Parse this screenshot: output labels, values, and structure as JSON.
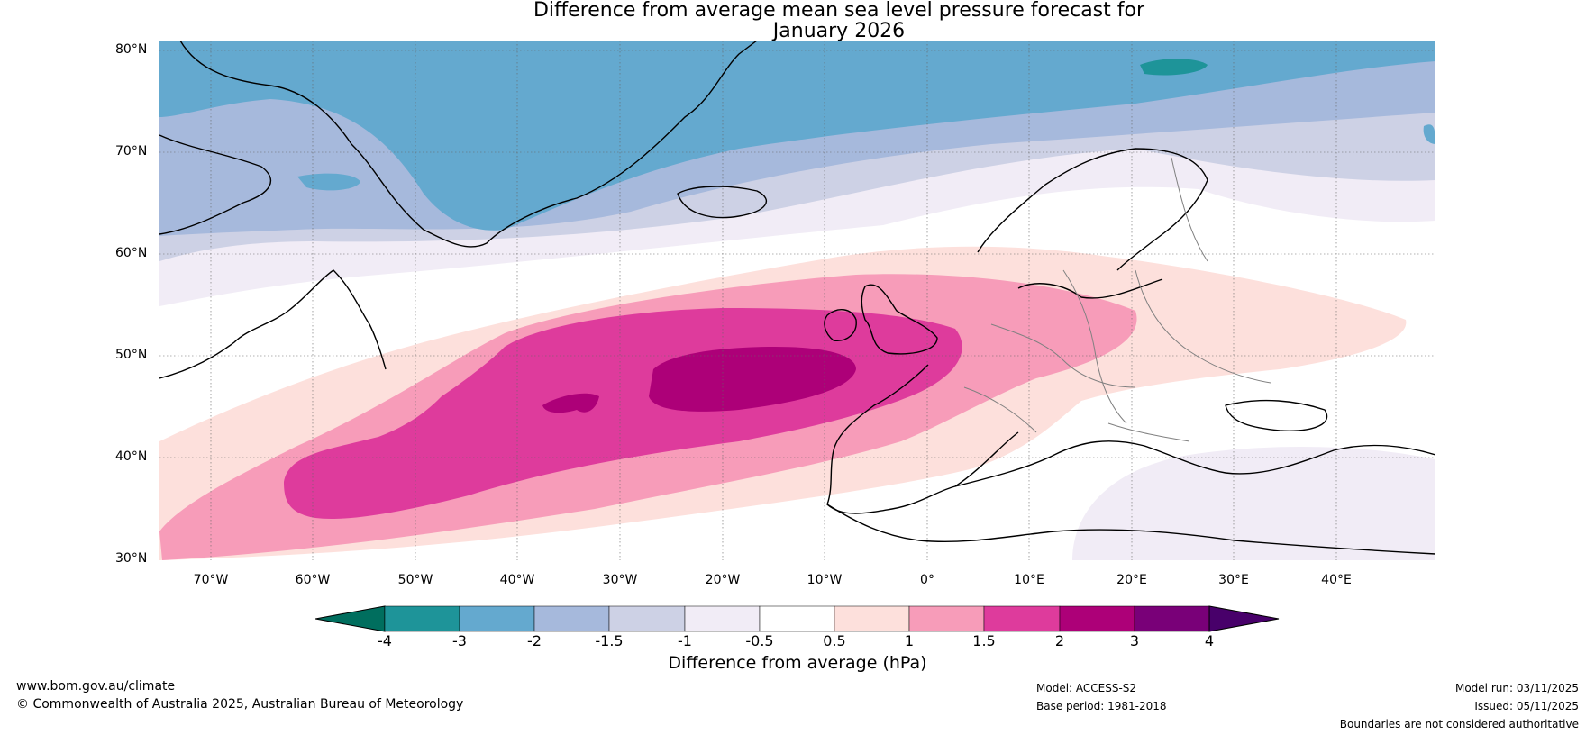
{
  "title_line1": "Difference from average mean sea level pressure forecast for",
  "title_line2": "January 2026",
  "map": {
    "lat_labels": [
      "80°N",
      "70°N",
      "60°N",
      "50°N",
      "40°N",
      "30°N"
    ],
    "lon_labels": [
      "70°W",
      "60°W",
      "50°W",
      "40°W",
      "30°W",
      "20°W",
      "10°W",
      "0°",
      "10°E",
      "20°E",
      "30°E",
      "40°E"
    ]
  },
  "colorbar": {
    "label": "Difference from average (hPa)",
    "ticks": [
      "-4",
      "-3",
      "-2",
      "-1.5",
      "-1",
      "-0.5",
      "0.5",
      "1",
      "1.5",
      "2",
      "3",
      "4"
    ],
    "colors": [
      "#006e5e",
      "#1e9499",
      "#64a9cf",
      "#a6b9dc",
      "#cdd1e5",
      "#f1ecf6",
      "#ffffff",
      "#fde0dc",
      "#f79cb9",
      "#de3b9c",
      "#ad0078",
      "#790078",
      "#48006a"
    ]
  },
  "footer": {
    "website": "www.bom.gov.au/climate",
    "copyright": "© Commonwealth of Australia 2025, Australian Bureau of Meteorology",
    "model": "Model: ACCESS-S2",
    "base_period": "Base period: 1981-2018",
    "model_run": "Model run: 03/11/2025",
    "issued": "Issued: 05/11/2025",
    "disclaimer": "Boundaries are not considered authoritative"
  }
}
